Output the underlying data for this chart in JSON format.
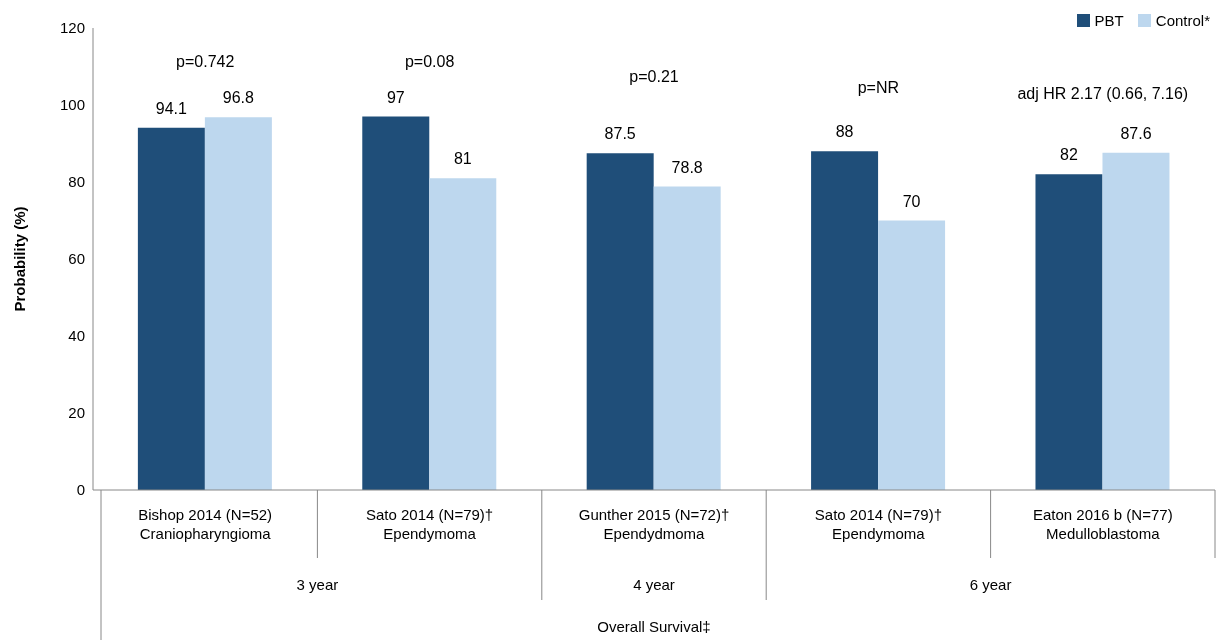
{
  "chart_data": {
    "type": "bar",
    "ylabel": "Probability (%)",
    "categories": [
      "Bishop 2014 (N=52)\nCraniopharyngioma",
      "Sato 2014  (N=79)†\nEpendymoma",
      "Gunther 2015 (N=72)†\nEpendydmoma",
      "Sato 2014  (N=79)†\nEpendymoma",
      "Eaton 2016 b (N=77)\nMedulloblastoma"
    ],
    "series": [
      {
        "name": "PBT",
        "color": "#1f4e79",
        "values": [
          94.1,
          97,
          87.5,
          88,
          82
        ]
      },
      {
        "name": "Control*",
        "color": "#bdd7ee",
        "values": [
          96.8,
          81,
          78.8,
          70,
          87.6
        ]
      }
    ],
    "data_labels": true,
    "ylim": [
      0,
      120
    ],
    "yticks": [
      0,
      20,
      40,
      60,
      80,
      100,
      120
    ],
    "grid": false,
    "legend": "top right",
    "annotations": [
      "p=0.742",
      "p=0.08",
      "p=0.21",
      "p=NR",
      "adj HR 2.17 (0.66, 7.16)",
      "3 year",
      "4 year",
      "6 year",
      "Overall Survival‡"
    ]
  }
}
